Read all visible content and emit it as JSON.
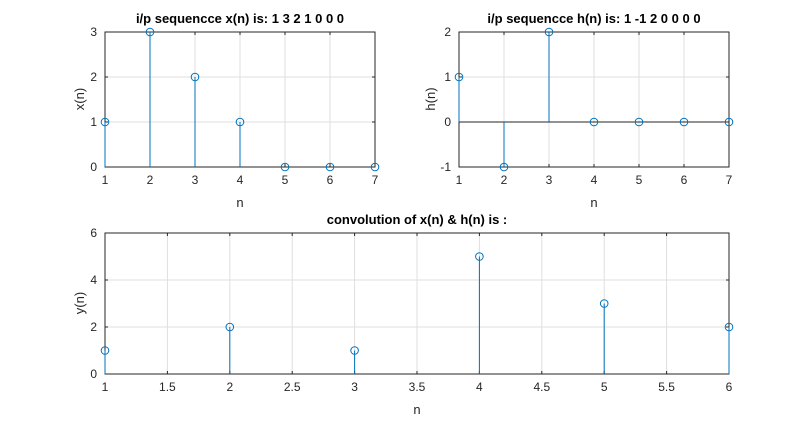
{
  "chart_data": [
    {
      "type": "stem",
      "title": "i/p sequencce x(n) is: 1  3  2  1  0  0  0",
      "xlabel": "n",
      "ylabel": "x(n)",
      "x": [
        1,
        2,
        3,
        4,
        5,
        6,
        7
      ],
      "y": [
        1,
        3,
        2,
        1,
        0,
        0,
        0
      ],
      "xlim": [
        1,
        7
      ],
      "ylim": [
        0,
        3
      ],
      "xticks": [
        1,
        2,
        3,
        4,
        5,
        6,
        7
      ],
      "xtick_labels": [
        "1",
        "2",
        "3",
        "4",
        "5",
        "6",
        "7"
      ],
      "yticks": [
        0,
        1,
        2,
        3
      ],
      "ytick_labels": [
        "0",
        "1",
        "2",
        "3"
      ],
      "baseline": false,
      "grid": true
    },
    {
      "type": "stem",
      "title": "i/p sequencce h(n) is: 1 -1  2  0  0  0  0",
      "xlabel": "n",
      "ylabel": "h(n)",
      "x": [
        1,
        2,
        3,
        4,
        5,
        6,
        7
      ],
      "y": [
        1,
        -1,
        2,
        0,
        0,
        0,
        0
      ],
      "xlim": [
        1,
        7
      ],
      "ylim": [
        -1,
        2
      ],
      "xticks": [
        1,
        2,
        3,
        4,
        5,
        6,
        7
      ],
      "xtick_labels": [
        "1",
        "2",
        "3",
        "4",
        "5",
        "6",
        "7"
      ],
      "yticks": [
        -1,
        0,
        1,
        2
      ],
      "ytick_labels": [
        "-1",
        "0",
        "1",
        "2"
      ],
      "baseline": true,
      "grid": true
    },
    {
      "type": "stem",
      "title": "convolution of x(n) & h(n) is :",
      "xlabel": "n",
      "ylabel": "y(n)",
      "x": [
        1,
        2,
        3,
        4,
        5,
        6
      ],
      "y": [
        1,
        2,
        1,
        5,
        3,
        2
      ],
      "xlim": [
        1,
        6
      ],
      "ylim": [
        0,
        6
      ],
      "xticks": [
        1,
        1.5,
        2,
        2.5,
        3,
        3.5,
        4,
        4.5,
        5,
        5.5,
        6
      ],
      "xtick_labels": [
        "1",
        "1.5",
        "2",
        "2.5",
        "3",
        "3.5",
        "4",
        "4.5",
        "5",
        "5.5",
        "6"
      ],
      "yticks": [
        0,
        2,
        4,
        6
      ],
      "ytick_labels": [
        "0",
        "2",
        "4",
        "6"
      ],
      "baseline": false,
      "grid": true
    }
  ],
  "colors": {
    "stem": "#0072bd",
    "grid": "#dfdfdf",
    "axis": "#262626",
    "background": "#ffffff"
  }
}
